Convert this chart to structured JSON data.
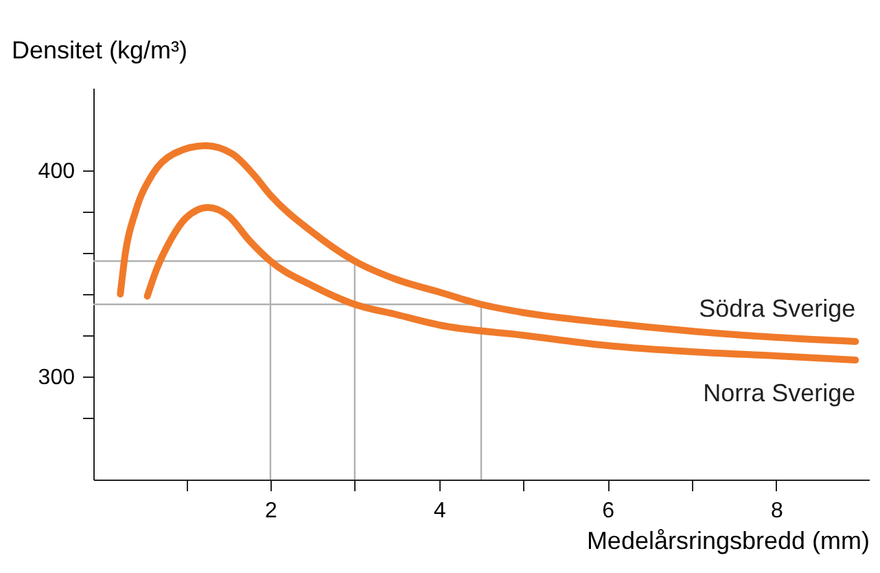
{
  "chart_data": {
    "type": "line",
    "xlabel": "Medelårsringsbredd (mm)",
    "ylabel": "Densitet (kg/m³)",
    "xlim": [
      -0.1,
      9.1
    ],
    "ylim": [
      250,
      440
    ],
    "xticks": [
      {
        "value": 1,
        "label": null
      },
      2,
      {
        "value": 3,
        "label": null
      },
      4,
      {
        "value": 5,
        "label": null
      },
      6,
      {
        "value": 7,
        "label": null
      },
      8
    ],
    "yticks": [
      {
        "value": 280,
        "label": null
      },
      300,
      {
        "value": 320,
        "label": null
      },
      {
        "value": 340,
        "label": null
      },
      {
        "value": 360,
        "label": null
      },
      {
        "value": 380,
        "label": null
      },
      400
    ],
    "grid": false,
    "legend": false,
    "marker": "none",
    "line_style": "solid",
    "series": [
      {
        "name": "Södra Sverige",
        "color": "#f07a2a",
        "x": [
          0.22,
          0.28,
          0.4,
          0.6,
          0.85,
          1.23,
          1.55,
          1.8,
          2,
          2.5,
          3,
          3.5,
          4,
          4.5,
          5,
          6,
          7,
          8,
          8.94
        ],
        "values": [
          340,
          360,
          380,
          398,
          408,
          412,
          408,
          398,
          388,
          370,
          356,
          347,
          341,
          335,
          331,
          326,
          322,
          319,
          317
        ]
      },
      {
        "name": "Norra Sverige",
        "color": "#f07a2a",
        "x": [
          0.54,
          0.65,
          0.8,
          1,
          1.26,
          1.5,
          1.75,
          2,
          2.5,
          3,
          3.5,
          4,
          5,
          6,
          7,
          8,
          8.94
        ],
        "values": [
          339,
          352,
          365,
          377,
          382,
          378,
          366,
          356,
          344,
          335,
          330,
          325,
          320,
          315,
          312,
          310,
          308
        ]
      }
    ],
    "ref_lines": [
      {
        "axis": "y",
        "value": 356,
        "label": null,
        "color": "#b0b0b0"
      },
      {
        "axis": "y",
        "value": 335,
        "label": null,
        "color": "#b0b0b0"
      },
      {
        "axis": "x",
        "value": 2,
        "label": null,
        "color": "#b0b0b0"
      },
      {
        "axis": "x",
        "value": 3,
        "label": null,
        "color": "#b0b0b0"
      },
      {
        "axis": "x",
        "value": 4.5,
        "label": null,
        "color": "#b0b0b0"
      }
    ]
  }
}
